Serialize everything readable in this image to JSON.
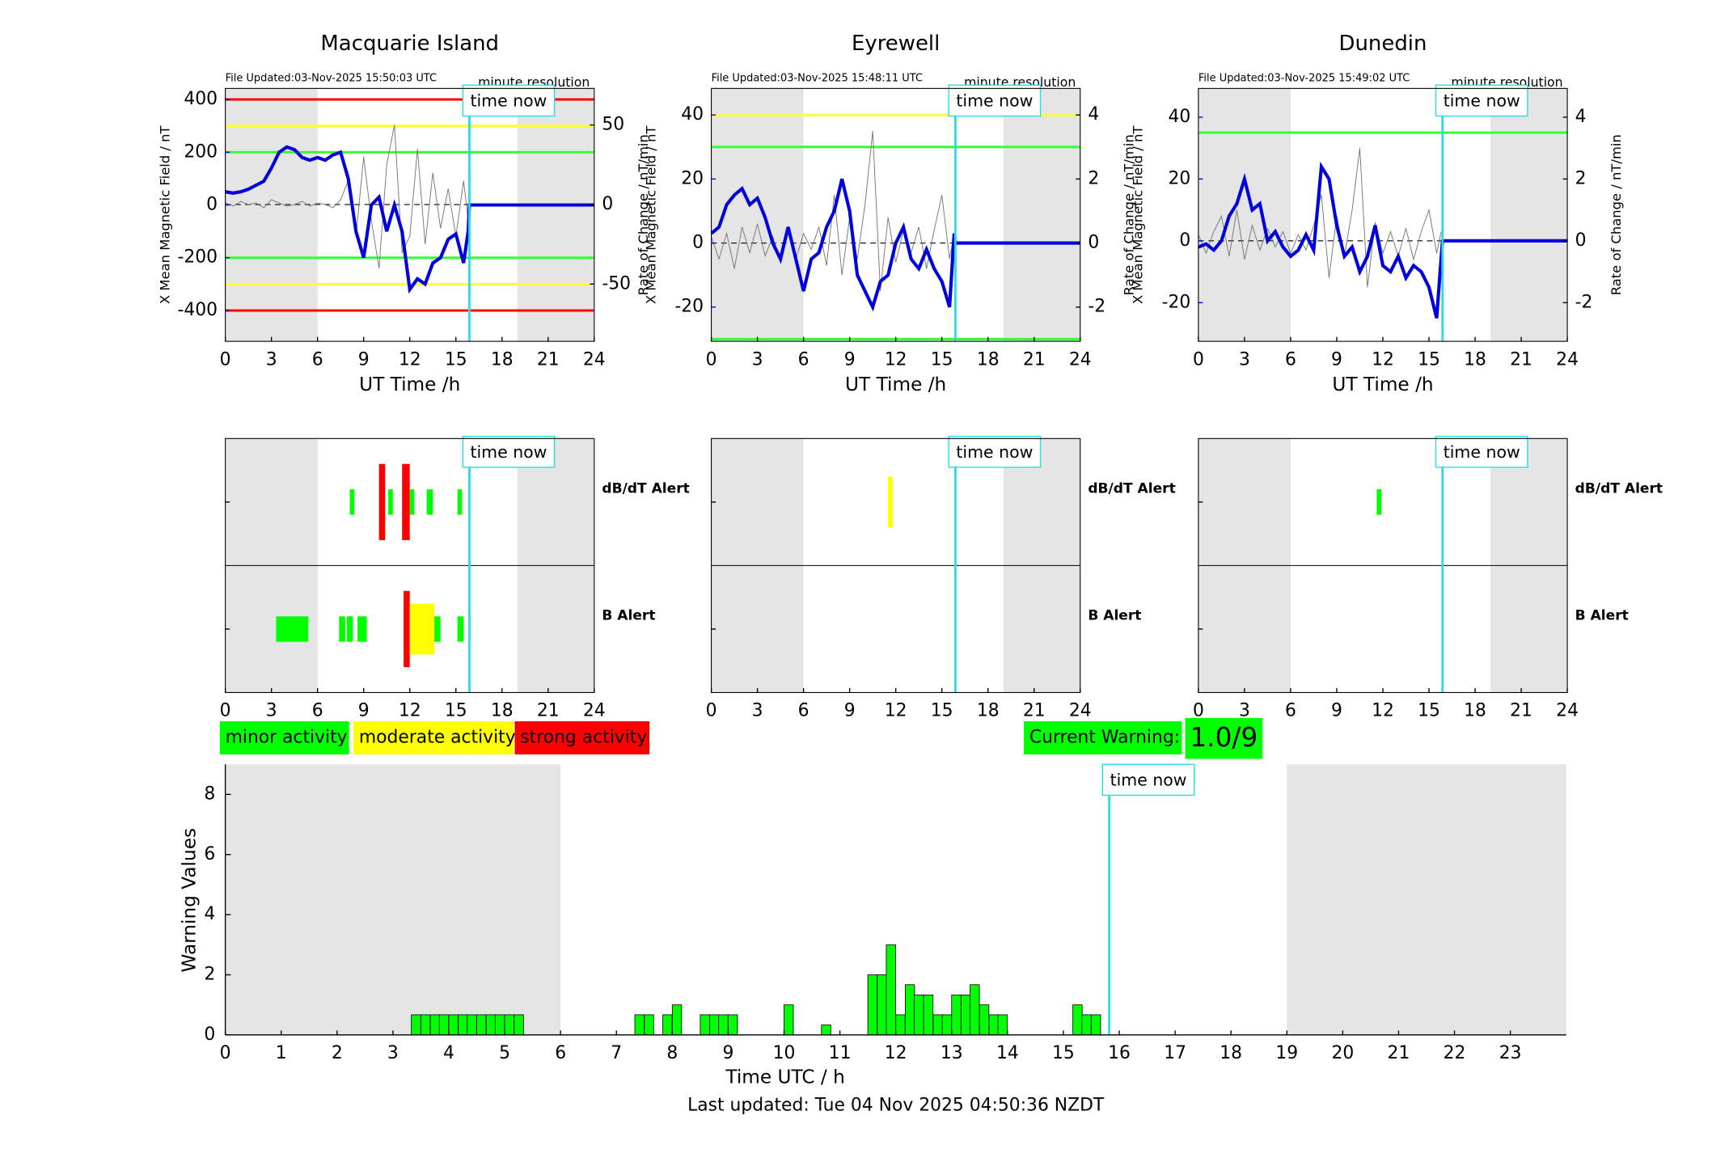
{
  "chart_data": [
    {
      "type": "line",
      "title": "Macquarie Island",
      "subtitle": "File Updated:03-Nov-2025 15:50:03 UTC",
      "note": "minute resolution",
      "x_label": "UT Time /h",
      "y_label": "X Mean Magnetic Field / nT",
      "y2_label": "Rate of Change / nT/min",
      "xlim": [
        0,
        24
      ],
      "xticks": [
        0,
        3,
        6,
        9,
        12,
        15,
        18,
        21,
        24
      ],
      "ylim": [
        -517,
        442
      ],
      "yticks": [
        -400,
        -200,
        0,
        200,
        400
      ],
      "y2lim": [
        -86,
        73
      ],
      "y2ticks": [
        -50,
        0,
        50
      ],
      "shaded": [
        [
          0,
          6
        ],
        [
          19,
          24
        ]
      ],
      "now": 15.88,
      "now_label": "time now",
      "thresholds": [
        {
          "value": 400,
          "color": "#ff0000"
        },
        {
          "value": 300,
          "color": "#ffff33"
        },
        {
          "value": 200,
          "color": "#33ff33"
        },
        {
          "value": -200,
          "color": "#33ff33"
        },
        {
          "value": -300,
          "color": "#ffff33"
        },
        {
          "value": -400,
          "color": "#ff0000"
        }
      ],
      "x": [
        0,
        0.5,
        1,
        1.5,
        2,
        2.5,
        3,
        3.5,
        4,
        4.5,
        5,
        5.5,
        6,
        6.5,
        7,
        7.5,
        8,
        8.5,
        9,
        9.5,
        10,
        10.5,
        11,
        11.5,
        12,
        12.5,
        13,
        13.5,
        14,
        14.5,
        15,
        15.5,
        15.8,
        15.88,
        24
      ],
      "series": [
        {
          "color": "#777777",
          "axis": "y2",
          "values": [
            1,
            -1,
            2,
            0,
            1,
            -2,
            3,
            1,
            -1,
            0,
            2,
            -1,
            1,
            0,
            -2,
            3,
            15,
            -20,
            30,
            -10,
            -40,
            25,
            50,
            -30,
            -20,
            35,
            -25,
            20,
            -15,
            10,
            -20,
            15,
            -10,
            null,
            null
          ]
        },
        {
          "color": "#0000dd",
          "values": [
            50,
            45,
            50,
            60,
            75,
            90,
            140,
            200,
            220,
            210,
            180,
            170,
            180,
            170,
            190,
            200,
            100,
            -100,
            -200,
            0,
            30,
            -100,
            0,
            -100,
            -320,
            -280,
            -300,
            -220,
            -200,
            -130,
            -110,
            -220,
            -100,
            0,
            0
          ]
        }
      ]
    },
    {
      "type": "line",
      "title": "Eyrewell",
      "subtitle": "File Updated:03-Nov-2025 15:48:11 UTC",
      "note": "minute resolution",
      "x_label": "UT Time /h",
      "y_label": "X Mean Magnetic Field / nT",
      "y2_label": "Rate of Change / nT/min",
      "xlim": [
        0,
        24
      ],
      "xticks": [
        0,
        3,
        6,
        9,
        12,
        15,
        18,
        21,
        24
      ],
      "ylim": [
        -30.7,
        48.3
      ],
      "yticks": [
        -20,
        0,
        20,
        40
      ],
      "y2lim": [
        -3.07,
        4.83
      ],
      "y2ticks": [
        -2,
        0,
        2,
        4
      ],
      "shaded": [
        [
          0,
          6
        ],
        [
          19,
          24
        ]
      ],
      "now": 15.88,
      "now_label": "time now",
      "thresholds": [
        {
          "value": 40,
          "color": "#ffff33"
        },
        {
          "value": 30,
          "color": "#33ff33"
        },
        {
          "value": -30,
          "color": "#33ff33"
        }
      ],
      "x": [
        0,
        0.5,
        1,
        1.5,
        2,
        2.5,
        3,
        3.5,
        4,
        4.5,
        5,
        5.5,
        6,
        6.5,
        7,
        7.5,
        8,
        8.5,
        9,
        9.5,
        10,
        10.5,
        11,
        11.5,
        12,
        12.5,
        13,
        13.5,
        14,
        14.5,
        15,
        15.5,
        15.8,
        15.88,
        24
      ],
      "series": [
        {
          "color": "#777777",
          "axis": "y2",
          "values": [
            0.2,
            -0.5,
            0.3,
            -0.8,
            0.5,
            -0.3,
            0.6,
            -0.4,
            0.2,
            -0.6,
            0.4,
            -0.5,
            0.3,
            -0.2,
            0.5,
            -0.7,
            1.5,
            -1,
            0.8,
            -0.5,
            1.2,
            3.5,
            -1.5,
            0.8,
            -0.6,
            0.4,
            -0.3,
            0.5,
            -0.8,
            0.4,
            1.5,
            -0.5,
            0.3,
            null,
            null
          ]
        },
        {
          "color": "#0000dd",
          "values": [
            3,
            5,
            12,
            15,
            17,
            12,
            14,
            8,
            0,
            -5,
            5,
            -5,
            -15,
            -5,
            -3,
            5,
            10,
            20,
            10,
            -10,
            -15,
            -20,
            -12,
            -10,
            0,
            5,
            -5,
            -8,
            -2,
            -8,
            -12,
            -20,
            3,
            0,
            0
          ]
        }
      ]
    },
    {
      "type": "line",
      "title": "Dunedin",
      "subtitle": "File Updated:03-Nov-2025 15:49:02 UTC",
      "note": "minute resolution",
      "x_label": "UT Time /h",
      "y_label": "X Mean Magnetic Field / nT",
      "y2_label": "Rate of Change / nT/min",
      "xlim": [
        0,
        24
      ],
      "xticks": [
        0,
        3,
        6,
        9,
        12,
        15,
        18,
        21,
        24
      ],
      "ylim": [
        -32.5,
        49.3
      ],
      "yticks": [
        -20,
        0,
        20,
        40
      ],
      "y2lim": [
        -3.25,
        4.93
      ],
      "y2ticks": [
        -2,
        0,
        2,
        4
      ],
      "shaded": [
        [
          0,
          6
        ],
        [
          19,
          24
        ]
      ],
      "now": 15.88,
      "now_label": "time now",
      "thresholds": [
        {
          "value": 35,
          "color": "#33ff33"
        }
      ],
      "x": [
        0,
        0.5,
        1,
        1.5,
        2,
        2.5,
        3,
        3.5,
        4,
        4.5,
        5,
        5.5,
        6,
        6.5,
        7,
        7.5,
        8,
        8.5,
        9,
        9.5,
        10,
        10.5,
        11,
        11.5,
        12,
        12.5,
        13,
        13.5,
        14,
        14.5,
        15,
        15.5,
        15.8,
        15.88,
        24
      ],
      "series": [
        {
          "color": "#777777",
          "axis": "y2",
          "values": [
            0.2,
            -0.4,
            0.3,
            0.8,
            -0.5,
            1,
            -0.6,
            0.5,
            -0.3,
            0.4,
            -0.2,
            0.3,
            -0.4,
            0.2,
            -0.3,
            0.5,
            1.5,
            -1.2,
            0.8,
            -0.5,
            1,
            3,
            -1.5,
            0.6,
            -0.4,
            0.3,
            -0.5,
            0.4,
            -0.6,
            0.3,
            1,
            -0.4,
            0.3,
            null,
            null
          ]
        },
        {
          "color": "#0000dd",
          "values": [
            -2,
            -1,
            -3,
            0,
            8,
            12,
            20,
            10,
            12,
            0,
            3,
            -2,
            -5,
            -3,
            2,
            -3,
            24,
            20,
            5,
            -5,
            -2,
            -10,
            -5,
            5,
            -8,
            -10,
            -5,
            -12,
            -8,
            -10,
            -15,
            -25,
            -5,
            0,
            0
          ]
        }
      ]
    },
    {
      "type": "alert",
      "xlim": [
        0,
        24
      ],
      "xticks": [
        0,
        3,
        6,
        9,
        12,
        15,
        18,
        21,
        24
      ],
      "shaded": [
        [
          0,
          6
        ],
        [
          19,
          24
        ]
      ],
      "now": 15.88,
      "now_label": "time now",
      "level_colors": [
        "#00ff00",
        "#ffff00",
        "#ff0000"
      ],
      "rows": [
        {
          "label": "dB/dT Alert",
          "color": "#000000",
          "alerts": [
            [
              8.1,
              8.4,
              1
            ],
            [
              10.0,
              10.4,
              3
            ],
            [
              10.6,
              10.9,
              1
            ],
            [
              11.5,
              12.0,
              3
            ],
            [
              12.0,
              12.3,
              1
            ],
            [
              13.1,
              13.5,
              1
            ],
            [
              15.1,
              15.4,
              1
            ]
          ]
        },
        {
          "label": "B Alert",
          "color": "#0000ff",
          "alerts": [
            [
              3.3,
              5.4,
              1
            ],
            [
              7.4,
              7.8,
              1
            ],
            [
              7.9,
              8.3,
              1
            ],
            [
              8.6,
              9.2,
              1
            ],
            [
              11.6,
              12.0,
              3
            ],
            [
              12.0,
              13.0,
              2
            ],
            [
              13.0,
              13.6,
              2
            ],
            [
              13.6,
              14.0,
              1
            ],
            [
              15.1,
              15.5,
              1
            ]
          ]
        }
      ]
    },
    {
      "type": "alert",
      "xlim": [
        0,
        24
      ],
      "xticks": [
        0,
        3,
        6,
        9,
        12,
        15,
        18,
        21,
        24
      ],
      "shaded": [
        [
          0,
          6
        ],
        [
          19,
          24
        ]
      ],
      "now": 15.88,
      "now_label": "time now",
      "level_colors": [
        "#00ff00",
        "#ffff00",
        "#ff0000"
      ],
      "rows": [
        {
          "label": "dB/dT Alert",
          "color": "#000000",
          "alerts": [
            [
              11.5,
              11.8,
              2
            ]
          ]
        },
        {
          "label": "B Alert",
          "color": "#0000ff",
          "alerts": []
        }
      ]
    },
    {
      "type": "alert",
      "xlim": [
        0,
        24
      ],
      "xticks": [
        0,
        3,
        6,
        9,
        12,
        15,
        18,
        21,
        24
      ],
      "shaded": [
        [
          0,
          6
        ],
        [
          19,
          24
        ]
      ],
      "now": 15.88,
      "now_label": "time now",
      "level_colors": [
        "#00ff00",
        "#ffff00",
        "#ff0000"
      ],
      "rows": [
        {
          "label": "dB/dT Alert",
          "color": "#000000",
          "alerts": [
            [
              11.6,
              11.9,
              1
            ]
          ]
        },
        {
          "label": "B Alert",
          "color": "#0000ff",
          "alerts": []
        }
      ]
    },
    {
      "type": "bar",
      "x_label": "Time UTC / h",
      "y_label": "Warning Values",
      "color": "#00ff00",
      "xlim": [
        0,
        24
      ],
      "xticks": [
        0,
        1,
        2,
        3,
        4,
        5,
        6,
        7,
        8,
        9,
        10,
        11,
        12,
        13,
        14,
        15,
        16,
        17,
        18,
        19,
        20,
        21,
        22,
        23
      ],
      "ylim": [
        0,
        9
      ],
      "yticks": [
        0,
        2,
        4,
        6,
        8
      ],
      "shaded": [
        [
          0,
          6
        ],
        [
          19,
          24
        ]
      ],
      "now": 15.82,
      "now_label": "time now",
      "bar_width": 0.1667,
      "x": [
        3.33,
        3.5,
        3.67,
        3.83,
        4,
        4.17,
        4.33,
        4.5,
        4.67,
        4.83,
        5,
        5.17,
        7.33,
        7.5,
        7.83,
        8,
        8.5,
        8.67,
        8.83,
        9,
        10,
        10.67,
        11.5,
        11.67,
        11.83,
        12,
        12.17,
        12.33,
        12.5,
        12.67,
        12.83,
        13,
        13.17,
        13.33,
        13.5,
        13.67,
        13.83,
        15.17,
        15.33,
        15.5
      ],
      "values": [
        0.67,
        0.67,
        0.67,
        0.67,
        0.67,
        0.67,
        0.67,
        0.67,
        0.67,
        0.67,
        0.67,
        0.67,
        0.67,
        0.67,
        0.67,
        1,
        0.67,
        0.67,
        0.67,
        0.67,
        1,
        0.33,
        2,
        2,
        3,
        0.67,
        1.67,
        1.33,
        1.33,
        0.67,
        0.67,
        1.33,
        1.33,
        1.67,
        1,
        0.67,
        0.67,
        1,
        0.67,
        0.67
      ]
    }
  ],
  "activity_legend": [
    {
      "label": "minor activity",
      "color": "#00ff00"
    },
    {
      "label": "moderate activity",
      "color": "#ffff00"
    },
    {
      "label": "strong activity",
      "color": "#ff0000"
    }
  ],
  "current_warning": {
    "label": "Current Warning:",
    "value": "1.0/9",
    "color": "#00ff00"
  },
  "last_updated": "Last updated: Tue 04 Nov 2025 04:50:36 NZDT"
}
